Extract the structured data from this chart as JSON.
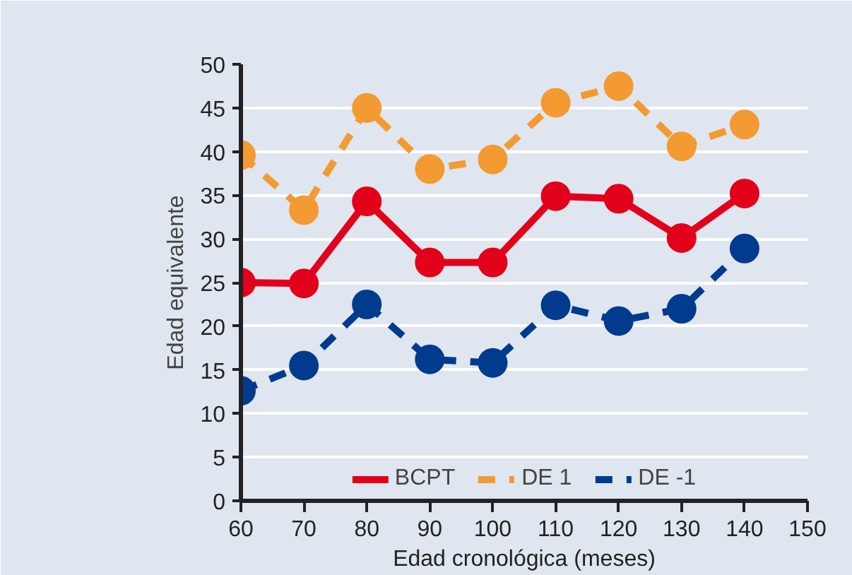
{
  "chart_data": {
    "type": "line",
    "xlabel": "Edad cronológica (meses)",
    "ylabel": "Edad equivalente",
    "x": [
      60,
      70,
      80,
      90,
      100,
      110,
      120,
      130,
      140
    ],
    "series": [
      {
        "name": "BCPT",
        "color": "#e2001a",
        "line_style": "solid",
        "values": [
          25.0,
          24.9,
          34.3,
          27.3,
          27.3,
          34.9,
          34.6,
          30.1,
          35.2
        ]
      },
      {
        "name": "DE 1",
        "color": "#f39a33",
        "line_style": "dashed",
        "values": [
          39.6,
          33.3,
          45.0,
          38.0,
          39.1,
          45.6,
          47.5,
          40.6,
          43.1
        ]
      },
      {
        "name": "DE -1",
        "color": "#003b8e",
        "line_style": "dashed",
        "values": [
          12.6,
          15.5,
          22.5,
          16.2,
          15.8,
          22.4,
          20.6,
          22.0,
          28.9
        ]
      }
    ],
    "xlim": [
      60,
      150
    ],
    "xticks": [
      60,
      70,
      80,
      90,
      100,
      110,
      120,
      130,
      140,
      150
    ],
    "ylim": [
      0,
      50
    ],
    "yticks": [
      0,
      5,
      10,
      15,
      20,
      25,
      30,
      35,
      40,
      45,
      50
    ],
    "grid": "y",
    "legend": "bottom",
    "marker": "circle"
  }
}
